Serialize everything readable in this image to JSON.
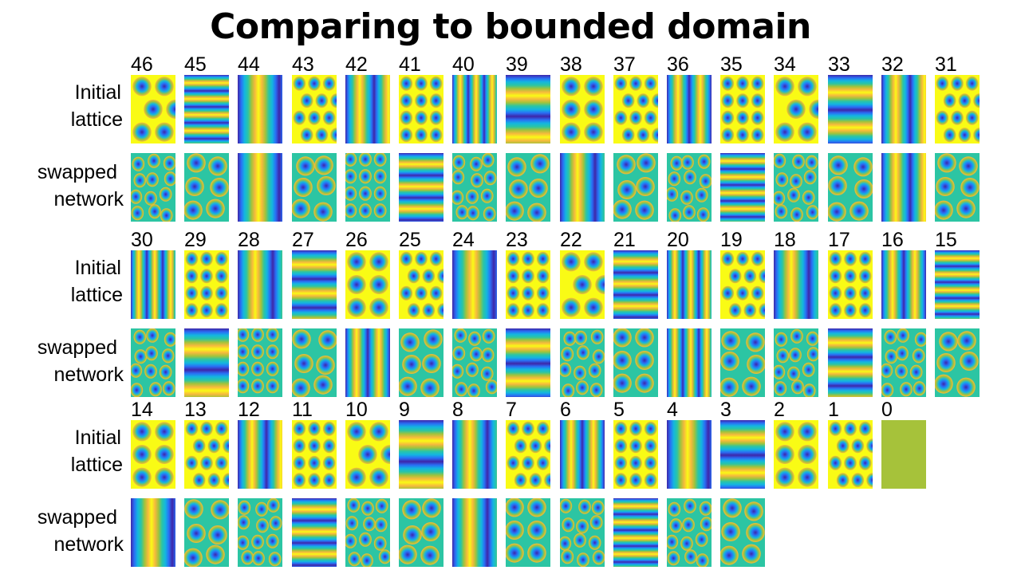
{
  "title": "Comparing to bounded domain",
  "row_labels": {
    "initial": [
      "Initial",
      "lattice"
    ],
    "swapped": [
      "swapped",
      "network"
    ]
  },
  "colormap": [
    "#3e26a8",
    "#2a6ef5",
    "#13b6e0",
    "#2cc5a3",
    "#a3c33a",
    "#f7ba3d",
    "#f9fb15"
  ],
  "blank_color": "#a6c23a",
  "blocks": [
    {
      "labels": [
        46,
        45,
        44,
        43,
        42,
        41,
        40,
        39,
        38,
        37,
        36,
        35,
        34,
        33,
        32,
        31
      ]
    },
    {
      "labels": [
        30,
        29,
        28,
        27,
        26,
        25,
        24,
        23,
        22,
        21,
        20,
        19,
        18,
        17,
        16,
        15
      ]
    },
    {
      "labels": [
        14,
        13,
        12,
        11,
        10,
        9,
        8,
        7,
        6,
        5,
        4,
        3,
        2,
        1,
        0
      ],
      "swapped_count": 12
    }
  ]
}
